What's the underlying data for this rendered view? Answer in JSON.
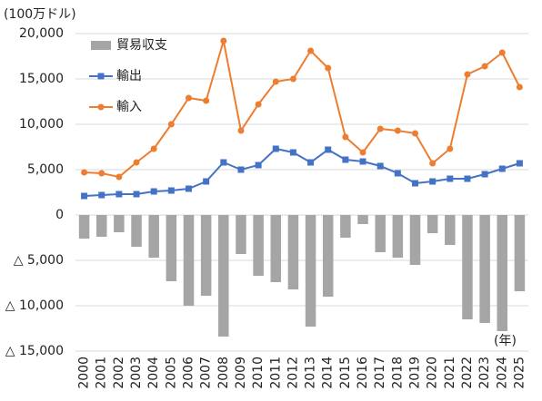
{
  "chart_data": {
    "type": "bar-line",
    "y_unit_label": "(100万ドル)",
    "x_unit_label": "(年)",
    "categories": [
      "2000",
      "2001",
      "2002",
      "2003",
      "2004",
      "2005",
      "2006",
      "2007",
      "2008",
      "2009",
      "2010",
      "2011",
      "2012",
      "2013",
      "2014",
      "2015",
      "2016",
      "2017",
      "2018",
      "2019",
      "2020",
      "2021",
      "2022",
      "2023",
      "2024",
      "2025"
    ],
    "series": [
      {
        "name": "貿易収支",
        "type": "bar",
        "color": "#a5a5a5",
        "values": [
          -2600,
          -2400,
          -1900,
          -3500,
          -4700,
          -7300,
          -10000,
          -8900,
          -13400,
          -4300,
          -6700,
          -7400,
          -8200,
          -12300,
          -9000,
          -2500,
          -1000,
          -4100,
          -4700,
          -5500,
          -2000,
          -3300,
          -11500,
          -11900,
          -12800,
          -8400
        ]
      },
      {
        "name": "輸出",
        "type": "line",
        "marker": "square",
        "color": "#4472c4",
        "values": [
          2100,
          2200,
          2300,
          2300,
          2600,
          2700,
          2900,
          3700,
          5800,
          5000,
          5500,
          7300,
          6900,
          5800,
          7200,
          6100,
          5900,
          5400,
          4600,
          3500,
          3700,
          4000,
          4000,
          4500,
          5100,
          5700
        ]
      },
      {
        "name": "輸入",
        "type": "line",
        "marker": "circle",
        "color": "#ed7d31",
        "values": [
          4700,
          4600,
          4200,
          5800,
          7300,
          10000,
          12900,
          12600,
          19200,
          9300,
          12200,
          14700,
          15000,
          18100,
          16200,
          8600,
          6900,
          9500,
          9300,
          9000,
          5700,
          7300,
          15500,
          16400,
          17900,
          14100
        ]
      }
    ],
    "ylim": [
      -15000,
      20000
    ],
    "yticks": [
      {
        "value": -15000,
        "label": "△ 15,000"
      },
      {
        "value": -10000,
        "label": "△ 10,000"
      },
      {
        "value": -5000,
        "label": "△ 5,000"
      },
      0,
      {
        "value": 5000,
        "label": "5,000"
      },
      {
        "value": 10000,
        "label": "10,000"
      },
      {
        "value": 15000,
        "label": "15,000"
      },
      {
        "value": 20000,
        "label": "20,000"
      }
    ],
    "grid": true,
    "legend": "upper-left"
  }
}
